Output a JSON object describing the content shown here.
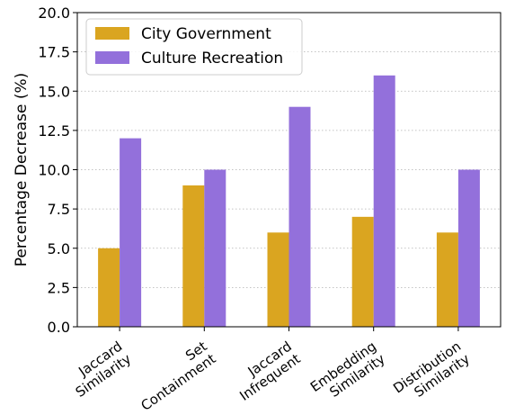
{
  "chart_data": {
    "type": "bar",
    "title": "",
    "xlabel": "",
    "ylabel": "Percentage Decrease (%)",
    "ylim": [
      0,
      20
    ],
    "yticks": [
      "0.0",
      "2.5",
      "5.0",
      "7.5",
      "10.0",
      "12.5",
      "15.0",
      "17.5",
      "20.0"
    ],
    "grid": "horizontal dotted",
    "legend_position": "top-left",
    "categories": [
      [
        "Jaccard",
        "Similarity"
      ],
      [
        "Set",
        "Containment"
      ],
      [
        "Jaccard",
        "Infrequent"
      ],
      [
        "Embedding",
        "Similarity"
      ],
      [
        "Distribution",
        "Similarity"
      ]
    ],
    "series": [
      {
        "name": "City Government",
        "color": "#DAA520",
        "values": [
          5,
          9,
          6,
          7,
          6
        ]
      },
      {
        "name": "Culture Recreation",
        "color": "#9370DB",
        "values": [
          12,
          10,
          14,
          16,
          10
        ]
      }
    ]
  }
}
